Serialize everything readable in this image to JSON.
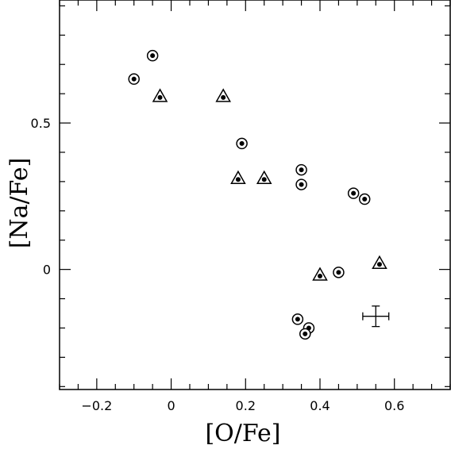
{
  "chart_data": {
    "type": "scatter",
    "title": "",
    "xlabel": "[O/Fe]",
    "ylabel": "[Na/Fe]",
    "xlim": [
      -0.3,
      0.75
    ],
    "ylim": [
      -0.41,
      0.92
    ],
    "x_ticks": [
      -0.2,
      0,
      0.2,
      0.4,
      0.6
    ],
    "x_tick_labels": [
      "−0.2",
      "0",
      "0.2",
      "0.4",
      "0.6"
    ],
    "y_ticks": [
      0,
      0.5
    ],
    "y_tick_labels": [
      "0",
      "0.5"
    ],
    "grid": false,
    "series": [
      {
        "marker": "circle-dot",
        "points": [
          {
            "x": -0.1,
            "y": 0.65
          },
          {
            "x": -0.05,
            "y": 0.73
          },
          {
            "x": 0.19,
            "y": 0.43
          },
          {
            "x": 0.35,
            "y": 0.34
          },
          {
            "x": 0.35,
            "y": 0.29
          },
          {
            "x": 0.49,
            "y": 0.26
          },
          {
            "x": 0.52,
            "y": 0.24
          },
          {
            "x": 0.45,
            "y": -0.01
          },
          {
            "x": 0.34,
            "y": -0.17
          },
          {
            "x": 0.37,
            "y": -0.2
          },
          {
            "x": 0.36,
            "y": -0.22
          }
        ]
      },
      {
        "marker": "triangle-dot",
        "points": [
          {
            "x": -0.03,
            "y": 0.59
          },
          {
            "x": 0.14,
            "y": 0.59
          },
          {
            "x": 0.18,
            "y": 0.31
          },
          {
            "x": 0.25,
            "y": 0.31
          },
          {
            "x": 0.4,
            "y": -0.02
          },
          {
            "x": 0.56,
            "y": 0.02
          }
        ]
      }
    ],
    "error_bar": {
      "x": 0.55,
      "y": -0.16,
      "x_err": 0.035,
      "y_err": 0.035
    }
  }
}
